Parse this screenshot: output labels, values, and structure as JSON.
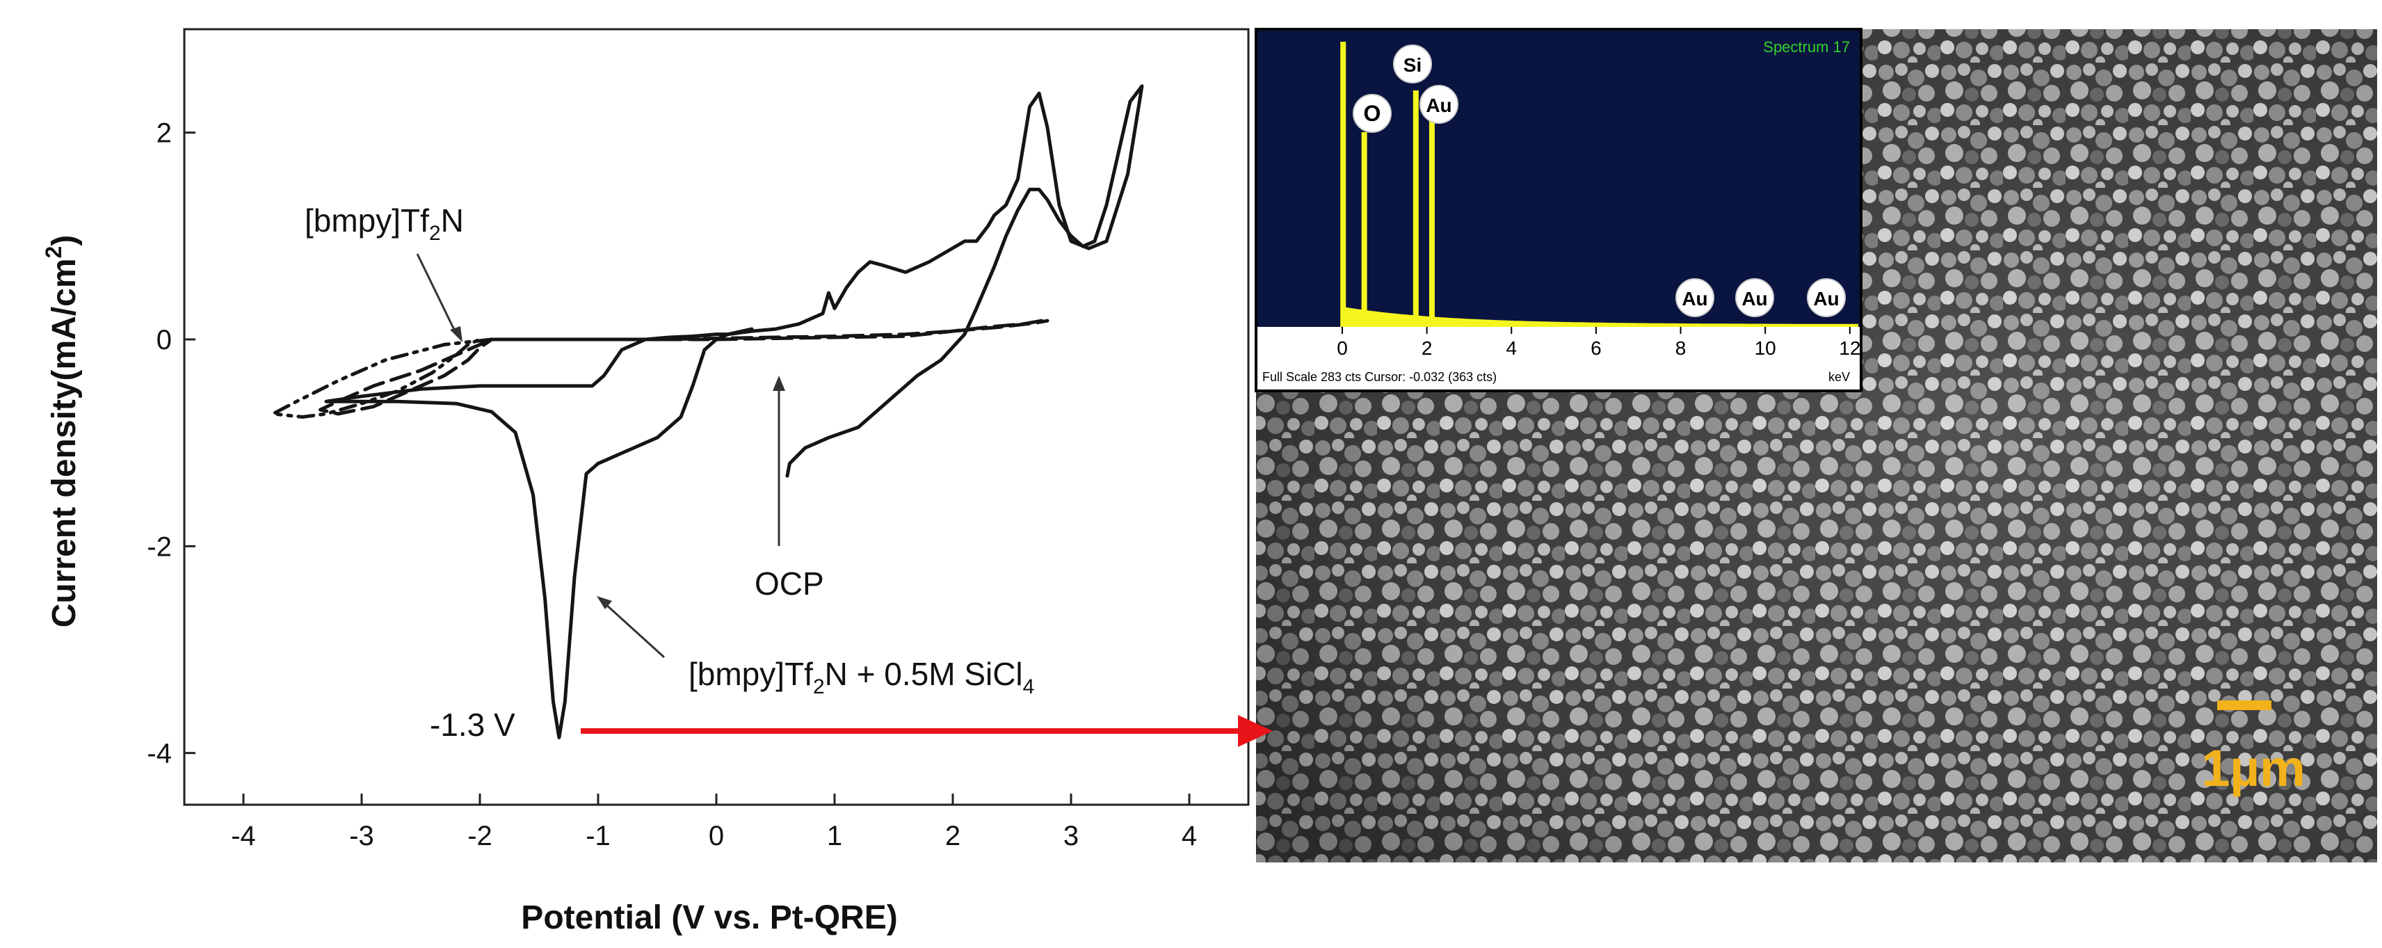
{
  "chart_data": {
    "type": "line",
    "title": "",
    "xlabel": "Potential (V vs. Pt-QRE)",
    "ylabel": "Current density(mA/cm²)",
    "ylabel_main": "Current density(mA/cm",
    "ylabel_sup": "2",
    "ylabel_close": ")",
    "xlim": [
      -4.5,
      4.5
    ],
    "ylim": [
      -4.5,
      3.0
    ],
    "x_ticks": [
      -4,
      -3,
      -2,
      -1,
      0,
      1,
      2,
      3,
      4
    ],
    "x_tick_labels": [
      "-4",
      "-3",
      "-2",
      "-1",
      "0",
      "1",
      "2",
      "3",
      "4"
    ],
    "y_ticks": [
      -4,
      -2,
      0,
      2
    ],
    "y_tick_labels": [
      "-4",
      "-2",
      "0",
      "2"
    ],
    "grid": false,
    "legend": "none",
    "series": [
      {
        "style": "solid",
        "points": [
          [
            0.6,
            -1.32
          ],
          [
            0.62,
            -1.2
          ],
          [
            0.75,
            -1.05
          ],
          [
            0.95,
            -0.95
          ],
          [
            1.2,
            -0.85
          ],
          [
            1.35,
            -0.7
          ],
          [
            1.5,
            -0.55
          ],
          [
            1.7,
            -0.35
          ],
          [
            1.9,
            -0.2
          ],
          [
            2.1,
            0.05
          ],
          [
            2.2,
            0.3
          ],
          [
            2.35,
            0.7
          ],
          [
            2.45,
            1.0
          ],
          [
            2.55,
            1.25
          ],
          [
            2.65,
            1.45
          ],
          [
            2.73,
            1.45
          ],
          [
            2.8,
            1.35
          ],
          [
            2.9,
            1.15
          ],
          [
            3.0,
            1.0
          ],
          [
            3.1,
            0.9
          ],
          [
            3.2,
            0.95
          ],
          [
            3.3,
            1.3
          ],
          [
            3.4,
            1.8
          ],
          [
            3.5,
            2.3
          ],
          [
            3.6,
            2.45
          ],
          [
            3.48,
            1.6
          ],
          [
            3.3,
            0.95
          ],
          [
            3.15,
            0.88
          ],
          [
            3.0,
            0.95
          ],
          [
            2.9,
            1.3
          ],
          [
            2.8,
            2.05
          ],
          [
            2.73,
            2.38
          ],
          [
            2.65,
            2.25
          ],
          [
            2.55,
            1.55
          ],
          [
            2.45,
            1.3
          ],
          [
            2.35,
            1.2
          ],
          [
            2.3,
            1.1
          ],
          [
            2.2,
            0.95
          ],
          [
            2.1,
            0.95
          ],
          [
            1.95,
            0.85
          ],
          [
            1.8,
            0.75
          ],
          [
            1.6,
            0.65
          ],
          [
            1.4,
            0.72
          ],
          [
            1.3,
            0.75
          ],
          [
            1.2,
            0.65
          ],
          [
            1.1,
            0.5
          ],
          [
            1.0,
            0.3
          ],
          [
            0.95,
            0.45
          ],
          [
            0.9,
            0.25
          ],
          [
            0.7,
            0.15
          ],
          [
            0.5,
            0.1
          ],
          [
            0.3,
            0.08
          ],
          [
            0.1,
            0.05
          ],
          [
            0.0,
            0.05
          ],
          [
            -0.2,
            0.03
          ],
          [
            -0.4,
            0.02
          ],
          [
            -0.6,
            0.0
          ],
          [
            -0.8,
            -0.1
          ],
          [
            -0.95,
            -0.35
          ],
          [
            -1.05,
            -0.45
          ],
          [
            -1.5,
            -0.45
          ],
          [
            -2.0,
            -0.45
          ],
          [
            -2.5,
            -0.48
          ],
          [
            -3.0,
            -0.55
          ],
          [
            -3.3,
            -0.6
          ],
          [
            -2.7,
            -0.6
          ],
          [
            -2.2,
            -0.62
          ],
          [
            -1.9,
            -0.7
          ],
          [
            -1.7,
            -0.9
          ],
          [
            -1.55,
            -1.5
          ],
          [
            -1.45,
            -2.5
          ],
          [
            -1.38,
            -3.5
          ],
          [
            -1.33,
            -3.85
          ],
          [
            -1.28,
            -3.5
          ],
          [
            -1.2,
            -2.3
          ],
          [
            -1.1,
            -1.3
          ],
          [
            -1.0,
            -1.2
          ],
          [
            -0.8,
            -1.1
          ],
          [
            -0.5,
            -0.95
          ],
          [
            -0.3,
            -0.75
          ],
          [
            -0.2,
            -0.45
          ],
          [
            -0.1,
            -0.1
          ],
          [
            0.0,
            0.0
          ],
          [
            0.1,
            0.05
          ],
          [
            0.3,
            0.1
          ]
        ]
      },
      {
        "style": "dashed",
        "points": [
          [
            2.75,
            0.18
          ],
          [
            2.6,
            0.15
          ],
          [
            2.3,
            0.12
          ],
          [
            2.0,
            0.08
          ],
          [
            1.6,
            0.03
          ],
          [
            1.0,
            0.02
          ],
          [
            0.5,
            0.01
          ],
          [
            0.0,
            0.0
          ],
          [
            -0.5,
            0.0
          ],
          [
            -1.0,
            0.0
          ],
          [
            -1.5,
            0.0
          ],
          [
            -1.9,
            0.0
          ],
          [
            -2.0,
            -0.05
          ],
          [
            -2.2,
            -0.15
          ],
          [
            -2.5,
            -0.3
          ],
          [
            -2.9,
            -0.45
          ],
          [
            -3.2,
            -0.6
          ],
          [
            -3.35,
            -0.68
          ],
          [
            -3.2,
            -0.72
          ],
          [
            -2.9,
            -0.65
          ],
          [
            -2.6,
            -0.5
          ],
          [
            -2.3,
            -0.35
          ],
          [
            -2.1,
            -0.2
          ],
          [
            -2.0,
            -0.08
          ],
          [
            -1.9,
            0.0
          ],
          [
            -1.5,
            0.0
          ],
          [
            -1.0,
            0.0
          ],
          [
            -0.5,
            0.0
          ],
          [
            0.0,
            0.01
          ],
          [
            0.5,
            0.02
          ],
          [
            1.0,
            0.03
          ],
          [
            1.6,
            0.05
          ],
          [
            2.0,
            0.08
          ],
          [
            2.4,
            0.12
          ],
          [
            2.7,
            0.16
          ],
          [
            2.8,
            0.18
          ]
        ]
      },
      {
        "style": "dash-dot-dot",
        "points": [
          [
            -1.9,
            0.0
          ],
          [
            -2.3,
            -0.05
          ],
          [
            -2.8,
            -0.2
          ],
          [
            -3.2,
            -0.4
          ],
          [
            -3.55,
            -0.6
          ],
          [
            -3.75,
            -0.72
          ],
          [
            -3.5,
            -0.75
          ],
          [
            -3.3,
            -0.72
          ],
          [
            -3.0,
            -0.62
          ],
          [
            -2.7,
            -0.5
          ],
          [
            -2.4,
            -0.32
          ],
          [
            -2.2,
            -0.15
          ],
          [
            -2.1,
            -0.05
          ],
          [
            -2.0,
            0.0
          ]
        ]
      }
    ],
    "annotations": {
      "ann_bmpy": {
        "main": "[bmpy]Tf",
        "sub": "2",
        "tail": "N"
      },
      "ann_mix": {
        "main": "[bmpy]Tf",
        "sub": "2",
        "tail": "N + 0.5M SiCl",
        "sub2": "4"
      },
      "ann_ocp": "OCP",
      "ann_peak": "-1.3 V"
    }
  },
  "eds_inset": {
    "title": "Spectrum 17",
    "background_color": "#0a1440",
    "spectrum_color": "#f5f51e",
    "x_tick_labels": [
      "0",
      "2",
      "4",
      "6",
      "8",
      "10",
      "12"
    ],
    "unit": "keV",
    "footer": "Full Scale 283 cts Cursor: -0.032  (363 cts)",
    "peak_labels": [
      "O",
      "Si",
      "Au",
      "Au",
      "Au",
      "Au"
    ]
  },
  "sem_image": {
    "scale_bar_label": "1µm",
    "scale_bar_color": "#f2b21b"
  },
  "arrow_color": "#e8141a"
}
